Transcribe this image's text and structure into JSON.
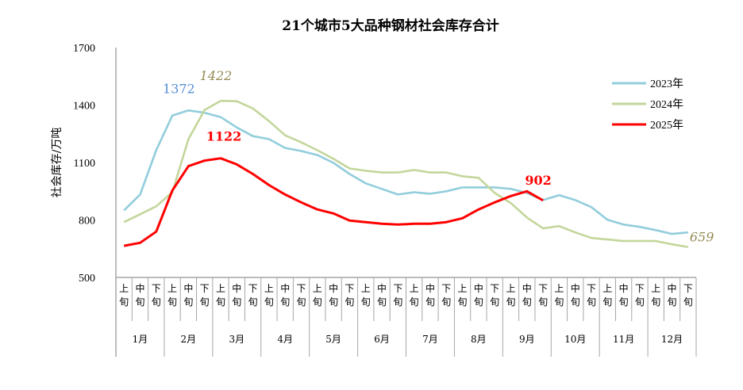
{
  "chart_data": {
    "type": "line",
    "title": "21个城市5大品种钢材社会库存合计",
    "ylabel": "社会库存/万吨",
    "xlabel": "",
    "ylim": [
      500,
      1700
    ],
    "yticks": [
      500,
      800,
      1100,
      1400,
      1700
    ],
    "grid": false,
    "legend_position": "right",
    "dekads": [
      "上旬",
      "中旬",
      "下旬"
    ],
    "months": [
      "1月",
      "2月",
      "3月",
      "4月",
      "5月",
      "6月",
      "7月",
      "8月",
      "9月",
      "10月",
      "11月",
      "12月"
    ],
    "series": [
      {
        "name": "2023年",
        "color": "#92CDDC",
        "values": [
          850,
          933,
          1164,
          1345,
          1372,
          1360,
          1337,
          1283,
          1238,
          1222,
          1176,
          1160,
          1139,
          1098,
          1040,
          991,
          962,
          933,
          945,
          937,
          950,
          970,
          970,
          970,
          962,
          941,
          904,
          929,
          904,
          867,
          801,
          776,
          764,
          747,
          727,
          735
        ],
        "label": {
          "index": 4,
          "text": "1372",
          "color": "#558ED5"
        }
      },
      {
        "name": "2024年",
        "color": "#C3D69B",
        "values": [
          789,
          830,
          871,
          945,
          1222,
          1374,
          1422,
          1420,
          1382,
          1316,
          1242,
          1205,
          1164,
          1119,
          1069,
          1057,
          1048,
          1048,
          1061,
          1048,
          1048,
          1028,
          1020,
          941,
          888,
          813,
          756,
          768,
          735,
          706,
          698,
          690,
          690,
          690,
          673,
          659
        ],
        "label": {
          "index": 6,
          "text": "1422",
          "color": "#948A54"
        },
        "end_label": {
          "index": 35,
          "text": "659",
          "color": "#948A54"
        }
      },
      {
        "name": "2025年",
        "color": "#FF0000",
        "values": [
          665,
          681,
          739,
          954,
          1081,
          1110,
          1122,
          1090,
          1040,
          982,
          933,
          892,
          855,
          834,
          797,
          789,
          780,
          776,
          780,
          780,
          789,
          809,
          855,
          892,
          925,
          950,
          902
        ],
        "label": {
          "index": 6,
          "text": "1122",
          "color": "#FF0000"
        },
        "end_label": {
          "index": 26,
          "text": "902",
          "color": "#FF0000"
        }
      }
    ]
  }
}
